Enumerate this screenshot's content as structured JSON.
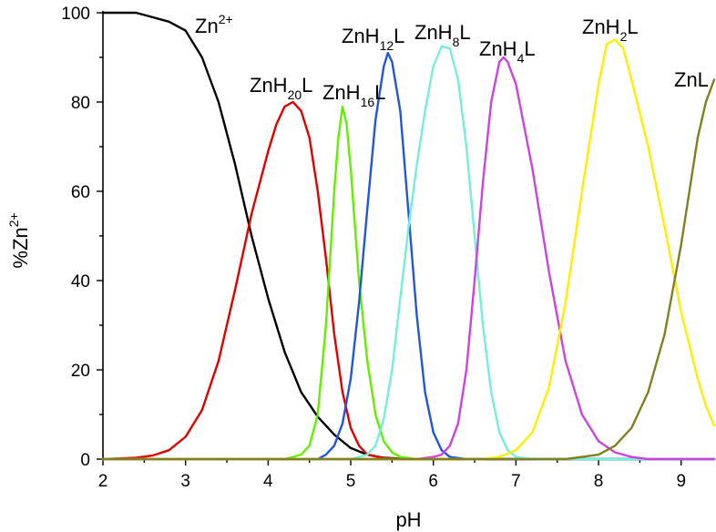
{
  "chart_data": {
    "type": "line",
    "title": "",
    "xlabel": "pH",
    "ylabel": {
      "base": "%Zn",
      "sup": "2+"
    },
    "xlim": [
      2,
      9.4
    ],
    "ylim": [
      0,
      100
    ],
    "xticks": [
      "2",
      "3",
      "4",
      "5",
      "6",
      "7",
      "8",
      "9"
    ],
    "yticks": [
      "0",
      "20",
      "40",
      "60",
      "80",
      "100"
    ],
    "grid": false,
    "legend": "none",
    "series": [
      {
        "name": "Zn2+",
        "label": {
          "base": "Zn",
          "sup": "2+",
          "rest": ""
        },
        "color": "#000000",
        "points": [
          [
            2.0,
            100
          ],
          [
            2.2,
            100
          ],
          [
            2.4,
            100
          ],
          [
            2.5,
            99.5
          ],
          [
            2.6,
            99
          ],
          [
            2.8,
            98
          ],
          [
            3.0,
            96
          ],
          [
            3.2,
            90
          ],
          [
            3.4,
            80
          ],
          [
            3.6,
            66
          ],
          [
            3.8,
            50
          ],
          [
            4.0,
            36
          ],
          [
            4.2,
            24
          ],
          [
            4.4,
            15
          ],
          [
            4.6,
            9.5
          ],
          [
            4.8,
            5.5
          ],
          [
            5.0,
            2.5
          ],
          [
            5.2,
            1
          ],
          [
            5.4,
            0.3
          ],
          [
            5.6,
            0.1
          ],
          [
            5.8,
            0
          ],
          [
            9.4,
            0
          ]
        ]
      },
      {
        "name": "ZnH20L",
        "label": {
          "base": "ZnH",
          "sub": "20",
          "rest": "L"
        },
        "color": "#e00000",
        "points": [
          [
            2.0,
            0
          ],
          [
            2.4,
            0.3
          ],
          [
            2.6,
            0.8
          ],
          [
            2.8,
            2
          ],
          [
            3.0,
            5
          ],
          [
            3.2,
            11
          ],
          [
            3.4,
            22
          ],
          [
            3.6,
            38
          ],
          [
            3.8,
            55
          ],
          [
            4.0,
            69
          ],
          [
            4.1,
            75
          ],
          [
            4.2,
            79
          ],
          [
            4.3,
            80
          ],
          [
            4.4,
            78
          ],
          [
            4.5,
            72
          ],
          [
            4.6,
            60
          ],
          [
            4.7,
            45
          ],
          [
            4.8,
            28
          ],
          [
            4.9,
            15
          ],
          [
            5.0,
            7
          ],
          [
            5.1,
            3
          ],
          [
            5.2,
            1
          ],
          [
            5.4,
            0.2
          ],
          [
            5.6,
            0
          ],
          [
            9.4,
            0
          ]
        ]
      },
      {
        "name": "ZnH16L",
        "label": {
          "base": "ZnH",
          "sub": "16",
          "rest": "L"
        },
        "color": "#66ee00",
        "points": [
          [
            2.0,
            0
          ],
          [
            4.2,
            0
          ],
          [
            4.4,
            1
          ],
          [
            4.5,
            3
          ],
          [
            4.6,
            10
          ],
          [
            4.7,
            30
          ],
          [
            4.8,
            60
          ],
          [
            4.85,
            72
          ],
          [
            4.9,
            79
          ],
          [
            4.95,
            75
          ],
          [
            5.0,
            65
          ],
          [
            5.1,
            40
          ],
          [
            5.2,
            22
          ],
          [
            5.3,
            10
          ],
          [
            5.4,
            4
          ],
          [
            5.5,
            1.5
          ],
          [
            5.6,
            0.5
          ],
          [
            5.8,
            0
          ],
          [
            9.4,
            0
          ]
        ]
      },
      {
        "name": "ZnH12L",
        "label": {
          "base": "ZnH",
          "sub": "12",
          "rest": "L"
        },
        "color": "#2255dd",
        "points": [
          [
            2.0,
            0
          ],
          [
            4.6,
            0
          ],
          [
            4.7,
            1
          ],
          [
            4.8,
            3
          ],
          [
            4.9,
            8
          ],
          [
            5.0,
            18
          ],
          [
            5.1,
            35
          ],
          [
            5.2,
            56
          ],
          [
            5.3,
            76
          ],
          [
            5.4,
            88
          ],
          [
            5.45,
            91
          ],
          [
            5.5,
            89
          ],
          [
            5.6,
            78
          ],
          [
            5.7,
            55
          ],
          [
            5.8,
            32
          ],
          [
            5.9,
            15
          ],
          [
            6.0,
            6
          ],
          [
            6.1,
            2
          ],
          [
            6.2,
            0.5
          ],
          [
            6.4,
            0
          ],
          [
            9.4,
            0
          ]
        ]
      },
      {
        "name": "ZnH8L",
        "label": {
          "base": "ZnH",
          "sub": "8",
          "rest": "L"
        },
        "color": "#77eedd",
        "points": [
          [
            2.0,
            0
          ],
          [
            5.0,
            0
          ],
          [
            5.2,
            1
          ],
          [
            5.3,
            3
          ],
          [
            5.4,
            9
          ],
          [
            5.5,
            20
          ],
          [
            5.6,
            36
          ],
          [
            5.7,
            52
          ],
          [
            5.8,
            66
          ],
          [
            5.9,
            78
          ],
          [
            6.0,
            88
          ],
          [
            6.1,
            92.5
          ],
          [
            6.2,
            92
          ],
          [
            6.3,
            85
          ],
          [
            6.4,
            70
          ],
          [
            6.5,
            50
          ],
          [
            6.6,
            30
          ],
          [
            6.7,
            15
          ],
          [
            6.8,
            6
          ],
          [
            6.9,
            2
          ],
          [
            7.0,
            0.5
          ],
          [
            7.2,
            0
          ],
          [
            9.4,
            0
          ]
        ]
      },
      {
        "name": "ZnH4L",
        "label": {
          "base": "ZnH",
          "sub": "4",
          "rest": "L"
        },
        "color": "#cc44dd",
        "points": [
          [
            2.0,
            0
          ],
          [
            5.8,
            0
          ],
          [
            6.0,
            0.5
          ],
          [
            6.1,
            1
          ],
          [
            6.2,
            3
          ],
          [
            6.3,
            8
          ],
          [
            6.4,
            20
          ],
          [
            6.5,
            40
          ],
          [
            6.6,
            62
          ],
          [
            6.7,
            80
          ],
          [
            6.8,
            89
          ],
          [
            6.85,
            90
          ],
          [
            6.9,
            89
          ],
          [
            7.0,
            84
          ],
          [
            7.2,
            65
          ],
          [
            7.4,
            42
          ],
          [
            7.6,
            22
          ],
          [
            7.8,
            10
          ],
          [
            8.0,
            4
          ],
          [
            8.2,
            1.5
          ],
          [
            8.4,
            0.5
          ],
          [
            8.6,
            0
          ],
          [
            9.4,
            0
          ]
        ]
      },
      {
        "name": "ZnH2L",
        "label": {
          "base": "ZnH",
          "sub": "2",
          "rest": "L"
        },
        "color": "#ffee00",
        "points": [
          [
            2.0,
            0
          ],
          [
            6.6,
            0
          ],
          [
            6.8,
            0.5
          ],
          [
            7.0,
            2
          ],
          [
            7.2,
            6
          ],
          [
            7.4,
            16
          ],
          [
            7.6,
            35
          ],
          [
            7.8,
            60
          ],
          [
            8.0,
            84
          ],
          [
            8.1,
            93
          ],
          [
            8.2,
            94
          ],
          [
            8.3,
            92
          ],
          [
            8.4,
            85
          ],
          [
            8.6,
            70
          ],
          [
            8.8,
            52
          ],
          [
            9.0,
            33
          ],
          [
            9.2,
            18
          ],
          [
            9.3,
            12
          ],
          [
            9.4,
            7.5
          ]
        ]
      },
      {
        "name": "ZnL",
        "label": {
          "base": "ZnL",
          "rest": ""
        },
        "color": "#808020",
        "points": [
          [
            2.0,
            0
          ],
          [
            7.6,
            0
          ],
          [
            7.8,
            0.5
          ],
          [
            8.0,
            1
          ],
          [
            8.2,
            3
          ],
          [
            8.4,
            7
          ],
          [
            8.6,
            15
          ],
          [
            8.8,
            28
          ],
          [
            9.0,
            48
          ],
          [
            9.1,
            60
          ],
          [
            9.2,
            72
          ],
          [
            9.3,
            80
          ],
          [
            9.4,
            85
          ]
        ]
      }
    ]
  }
}
